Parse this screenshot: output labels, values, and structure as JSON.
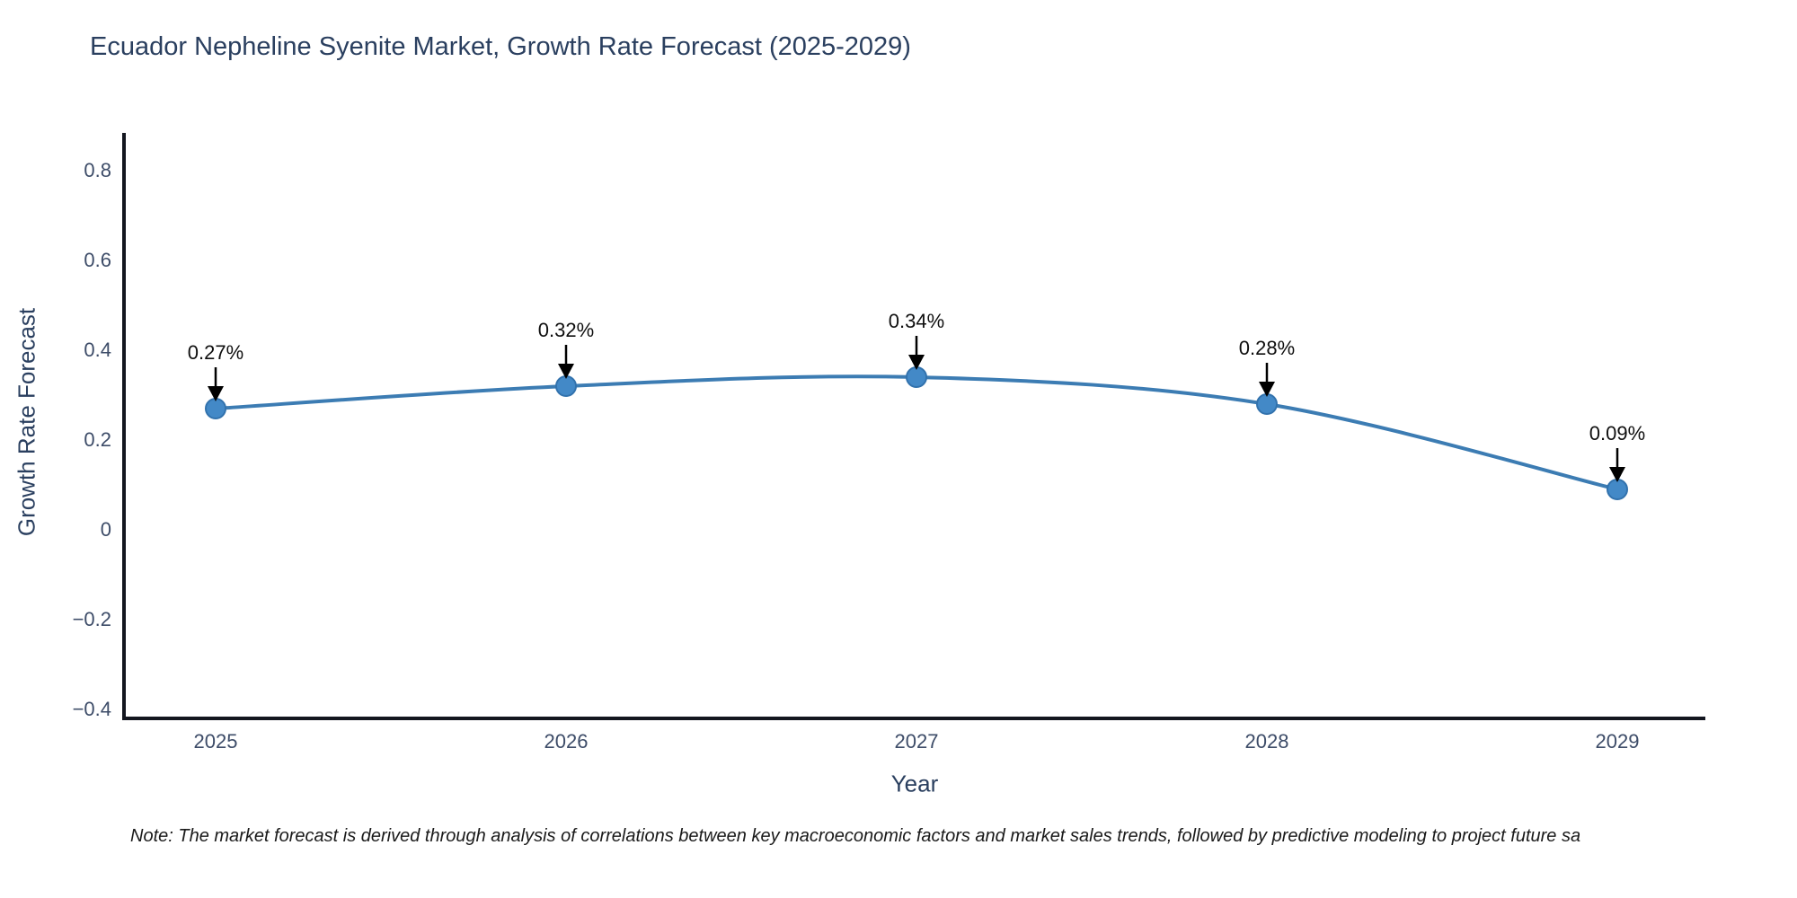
{
  "page": {
    "background_color": "#ffffff"
  },
  "chart_data": {
    "type": "line",
    "title": "Ecuador Nepheline Syenite Market, Growth Rate Forecast (2025-2029)",
    "xlabel": "Year",
    "ylabel": "Growth Rate Forecast",
    "categories": [
      "2025",
      "2026",
      "2027",
      "2028",
      "2029"
    ],
    "x": [
      2025,
      2026,
      2027,
      2028,
      2029
    ],
    "values": [
      0.27,
      0.32,
      0.34,
      0.28,
      0.09
    ],
    "point_labels": [
      "0.27%",
      "0.32%",
      "0.34%",
      "0.28%",
      "0.09%"
    ],
    "series_name": "Growth Rate Forecast",
    "line_shape": "spline",
    "ylim": [
      -0.4,
      0.8
    ],
    "y_ticks": [
      0.8,
      0.6,
      0.4,
      0.2,
      0,
      -0.2,
      -0.4
    ],
    "y_tick_labels": [
      "0.8",
      "0.6",
      "0.4",
      "0.2",
      "0",
      "−0.2",
      "−0.4"
    ],
    "grid": false,
    "legend_position": "none",
    "annotations_arrow_color": "#000000",
    "line_color": "#3c7cb3",
    "marker_color": "#4389c7",
    "marker_outline_color": "#3272ad",
    "axis_line_color": "#13161f",
    "title_color": "#2a3f5f",
    "tick_label_color": "#3d4c68"
  },
  "footer": {
    "note": "Note: The market forecast is derived through analysis of correlations between key macroeconomic factors and market sales trends, followed by predictive modeling to project future sa"
  }
}
